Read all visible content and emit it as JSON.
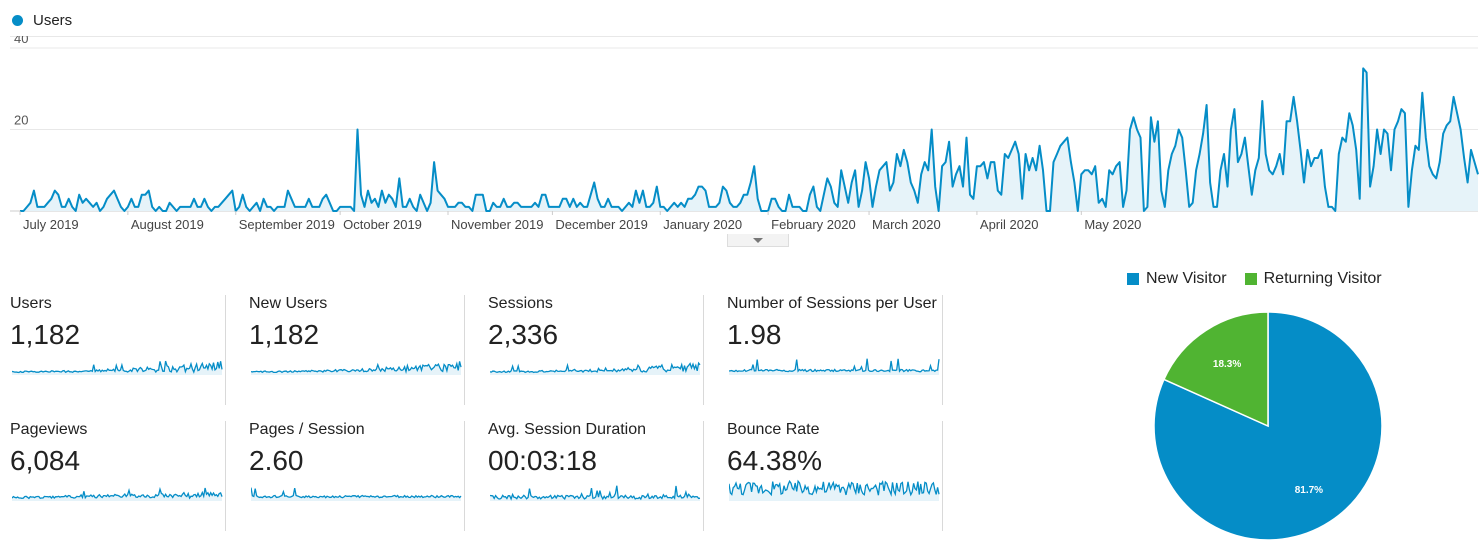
{
  "legend": {
    "label": "Users",
    "color": "#058dc7"
  },
  "colors": {
    "accent": "#058dc7",
    "fill": "#e6f3f9",
    "returning": "#50b432",
    "grid": "#e8e8e8"
  },
  "chart_data": [
    {
      "type": "area",
      "series": [
        {
          "name": "Users"
        }
      ],
      "ylim": [
        0,
        40
      ],
      "yticks": [
        "20",
        "40"
      ],
      "grid": true,
      "legend_position": "top-left",
      "x_labels": [
        "July 2019",
        "August 2019",
        "September 2019",
        "October 2019",
        "November 2019",
        "December 2019",
        "January 2020",
        "February 2020",
        "March 2020",
        "April 2020",
        "May 2020"
      ],
      "values": [
        0,
        0,
        1,
        2,
        5,
        1,
        1,
        1,
        2,
        3,
        5,
        4,
        1,
        1,
        3,
        1,
        0,
        4,
        2,
        3,
        2,
        1,
        2,
        0,
        1,
        3,
        4,
        5,
        3,
        1,
        0,
        1,
        3,
        1,
        1,
        4,
        4,
        5,
        1,
        0,
        1,
        0,
        0,
        2,
        1,
        0,
        1,
        1,
        1,
        1,
        3,
        1,
        1,
        3,
        1,
        0,
        1,
        1,
        2,
        3,
        4,
        5,
        0,
        1,
        4,
        1,
        0,
        1,
        2,
        0,
        3,
        1,
        1,
        0,
        1,
        1,
        1,
        5,
        3,
        1,
        1,
        1,
        1,
        3,
        1,
        1,
        1,
        3,
        4,
        2,
        0,
        0,
        1,
        1,
        1,
        1,
        0,
        20,
        4,
        1,
        5,
        2,
        3,
        1,
        5,
        2,
        4,
        3,
        1,
        8,
        1,
        1,
        3,
        1,
        0,
        4,
        2,
        0,
        2,
        12,
        5,
        4,
        3,
        1,
        1,
        1,
        2,
        2,
        1,
        1,
        0,
        4,
        4,
        4,
        0,
        0,
        2,
        1,
        1,
        3,
        1,
        1,
        2,
        2,
        1,
        1,
        1,
        1,
        2,
        1,
        4,
        4,
        1,
        1,
        1,
        1,
        3,
        3,
        1,
        3,
        1,
        2,
        1,
        1,
        4,
        7,
        3,
        1,
        1,
        3,
        1,
        1,
        1,
        0,
        1,
        2,
        1,
        5,
        2,
        5,
        1,
        1,
        2,
        6,
        1,
        1,
        0,
        1,
        2,
        1,
        2,
        1,
        3,
        3,
        4,
        6,
        6,
        5,
        1,
        1,
        1,
        2,
        6,
        5,
        2,
        1,
        1,
        2,
        4,
        4,
        7,
        11,
        3,
        0,
        0,
        0,
        3,
        3,
        1,
        0,
        0,
        4,
        1,
        1,
        1,
        0,
        0,
        4,
        6,
        1,
        0,
        4,
        8,
        6,
        2,
        1,
        10,
        6,
        2,
        7,
        10,
        1,
        5,
        12,
        8,
        1,
        6,
        10,
        11,
        12,
        5,
        7,
        14,
        11,
        15,
        12,
        7,
        5,
        2,
        9,
        12,
        10,
        20,
        6,
        0,
        11,
        12,
        17,
        6,
        9,
        11,
        6,
        18,
        4,
        3,
        11,
        11,
        12,
        8,
        12,
        12,
        5,
        4,
        14,
        13,
        15,
        17,
        14,
        3,
        14,
        10,
        13,
        10,
        16,
        10,
        0,
        0,
        12,
        14,
        16,
        17,
        18,
        12,
        7,
        0,
        9,
        10,
        10,
        9,
        11,
        2,
        3,
        1,
        10,
        9,
        11,
        12,
        1,
        5,
        20,
        23,
        20,
        18,
        0,
        1,
        23,
        17,
        22,
        5,
        1,
        10,
        14,
        16,
        20,
        18,
        10,
        1,
        2,
        10,
        14,
        19,
        26,
        7,
        1,
        1,
        10,
        14,
        6,
        20,
        25,
        12,
        14,
        18,
        11,
        4,
        10,
        13,
        27,
        14,
        10,
        9,
        11,
        14,
        9,
        22,
        22,
        28,
        22,
        15,
        7,
        15,
        11,
        13,
        13,
        15,
        6,
        1,
        1,
        0,
        14,
        18,
        17,
        24,
        21,
        15,
        3,
        35,
        34,
        6,
        11,
        20,
        14,
        20,
        19,
        10,
        20,
        22,
        25,
        24,
        1,
        10,
        16,
        15,
        29,
        18,
        11,
        9,
        8,
        12,
        19,
        21,
        22,
        28,
        24,
        20,
        13,
        7,
        15,
        12,
        9
      ]
    },
    {
      "type": "pie",
      "legend_position": "top",
      "slices": [
        {
          "name": "New Visitor",
          "value": 81.7,
          "label": "81.7%",
          "color": "#058dc7"
        },
        {
          "name": "Returning Visitor",
          "value": 18.3,
          "label": "18.3%",
          "color": "#50b432"
        }
      ]
    }
  ],
  "metrics": [
    {
      "label": "Users",
      "value": "1,182",
      "trend": "rising"
    },
    {
      "label": "New Users",
      "value": "1,182",
      "trend": "rising"
    },
    {
      "label": "Sessions",
      "value": "2,336",
      "trend": "rising"
    },
    {
      "label": "Number of Sessions per User",
      "value": "1.98",
      "trend": "flat"
    },
    {
      "label": "Pageviews",
      "value": "6,084",
      "trend": "rising-mild"
    },
    {
      "label": "Pages / Session",
      "value": "2.60",
      "trend": "flat"
    },
    {
      "label": "Avg. Session Duration",
      "value": "00:03:18",
      "trend": "noisy"
    },
    {
      "label": "Bounce Rate",
      "value": "64.38%",
      "trend": "dense"
    }
  ]
}
